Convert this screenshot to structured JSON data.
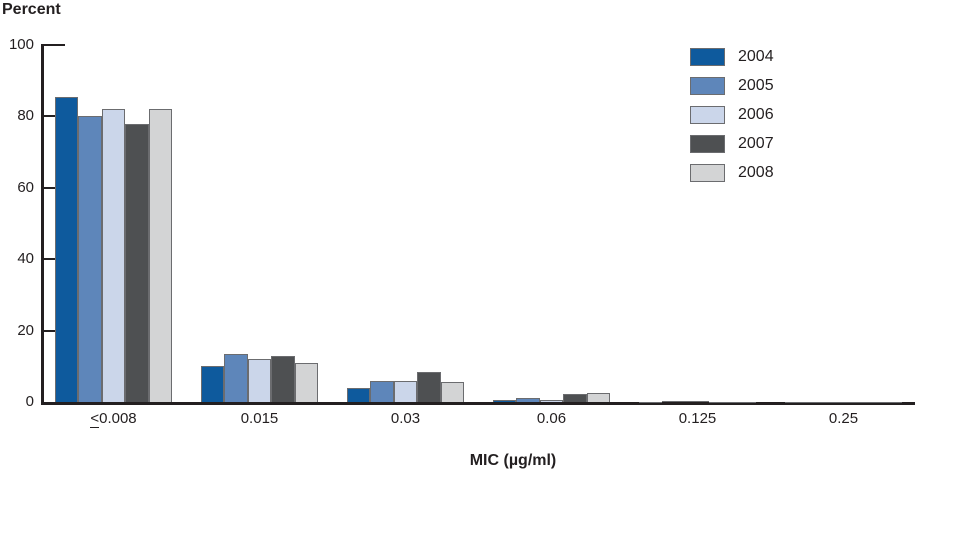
{
  "chart_data": {
    "type": "bar",
    "title": "Percent",
    "xlabel": "MIC (µg/ml)",
    "categories": [
      "≤0.008",
      "0.015",
      "0.03",
      "0.06",
      "0.125",
      "0.25"
    ],
    "y_ticks": [
      100,
      80,
      60,
      40,
      20,
      0
    ],
    "ylim": [
      0,
      100
    ],
    "grid": false,
    "legend_position": "top-right",
    "series": [
      {
        "name": "2004",
        "color": "#0e5a9d",
        "values": [
          85.5,
          10,
          4,
          0.7,
          0,
          0
        ]
      },
      {
        "name": "2005",
        "color": "#5e86ba",
        "values": [
          80,
          13.5,
          6,
          1,
          0.2,
          0
        ]
      },
      {
        "name": "2006",
        "color": "#cbd6ea",
        "values": [
          82,
          12,
          6,
          0.5,
          0.2,
          0
        ]
      },
      {
        "name": "2007",
        "color": "#4e5052",
        "values": [
          78,
          13,
          8.5,
          2.2,
          0,
          0
        ]
      },
      {
        "name": "2008",
        "color": "#d3d4d5",
        "values": [
          82,
          11,
          5.5,
          2.6,
          0,
          0
        ]
      }
    ]
  },
  "colors": {
    "axis": "#231f20",
    "text": "#231f20",
    "bar_border": "#6b6c6f",
    "background": "#ffffff"
  }
}
